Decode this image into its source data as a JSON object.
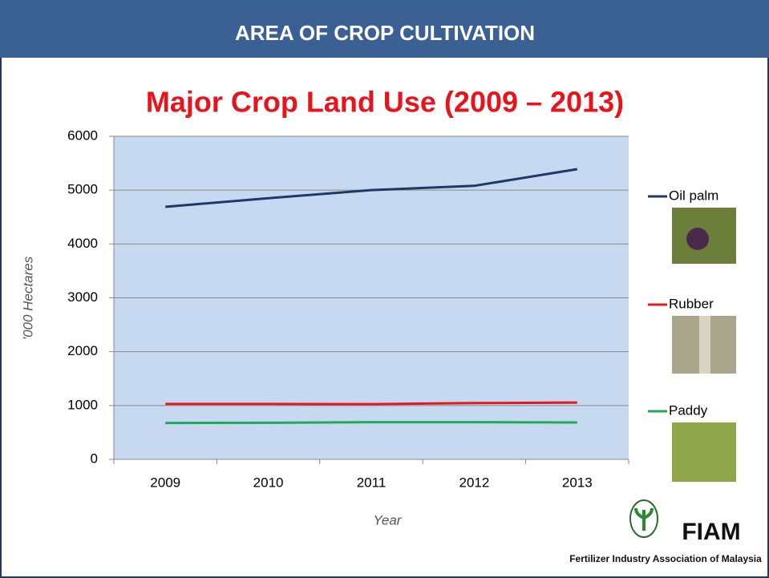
{
  "header": "AREA OF CROP CULTIVATION",
  "logo": {
    "name": "FIAM",
    "full_name": "Fertilizer Industry Association of Malaysia"
  },
  "chart_data": {
    "type": "line",
    "title": "Major Crop Land Use (2009 – 2013)",
    "x_label": "Year",
    "y_label": "'000 Hectares",
    "categories": [
      "2009",
      "2010",
      "2011",
      "2012",
      "2013"
    ],
    "series": [
      {
        "name": "Oil palm",
        "color": "#1f3864",
        "values": [
          4690,
          4850,
          5000,
          5080,
          5390
        ]
      },
      {
        "name": "Rubber",
        "color": "#e31a1c",
        "values": [
          1030,
          1030,
          1025,
          1045,
          1055
        ]
      },
      {
        "name": "Paddy",
        "color": "#1faa5a",
        "values": [
          675,
          680,
          690,
          690,
          685
        ]
      }
    ],
    "ylim": [
      0,
      6000
    ],
    "yticks": [
      0,
      1000,
      2000,
      3000,
      4000,
      5000,
      6000
    ],
    "grid": true,
    "legend": "right",
    "plot_background": "#c6d9f1"
  }
}
